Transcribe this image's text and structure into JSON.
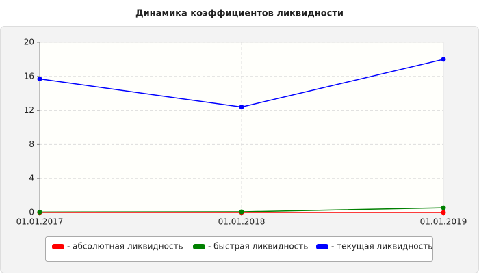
{
  "chart_data": {
    "type": "line",
    "title": "Динамика коэффициентов ликвидности",
    "categories": [
      "01.01.2017",
      "01.01.2018",
      "01.01.2019"
    ],
    "series": [
      {
        "name": "- абсолютная ликвидность",
        "color": "#ff0000",
        "values": [
          0,
          0,
          0
        ]
      },
      {
        "name": "- быстрая ликвидность",
        "color": "#008000",
        "values": [
          0.05,
          0.08,
          0.55
        ]
      },
      {
        "name": "- текущая ликвидность",
        "color": "#0000ff",
        "values": [
          15.7,
          12.4,
          18.0
        ]
      }
    ],
    "ylim": [
      0,
      20
    ],
    "yticks": [
      0,
      4,
      8,
      12,
      16,
      20
    ],
    "grid": true
  }
}
